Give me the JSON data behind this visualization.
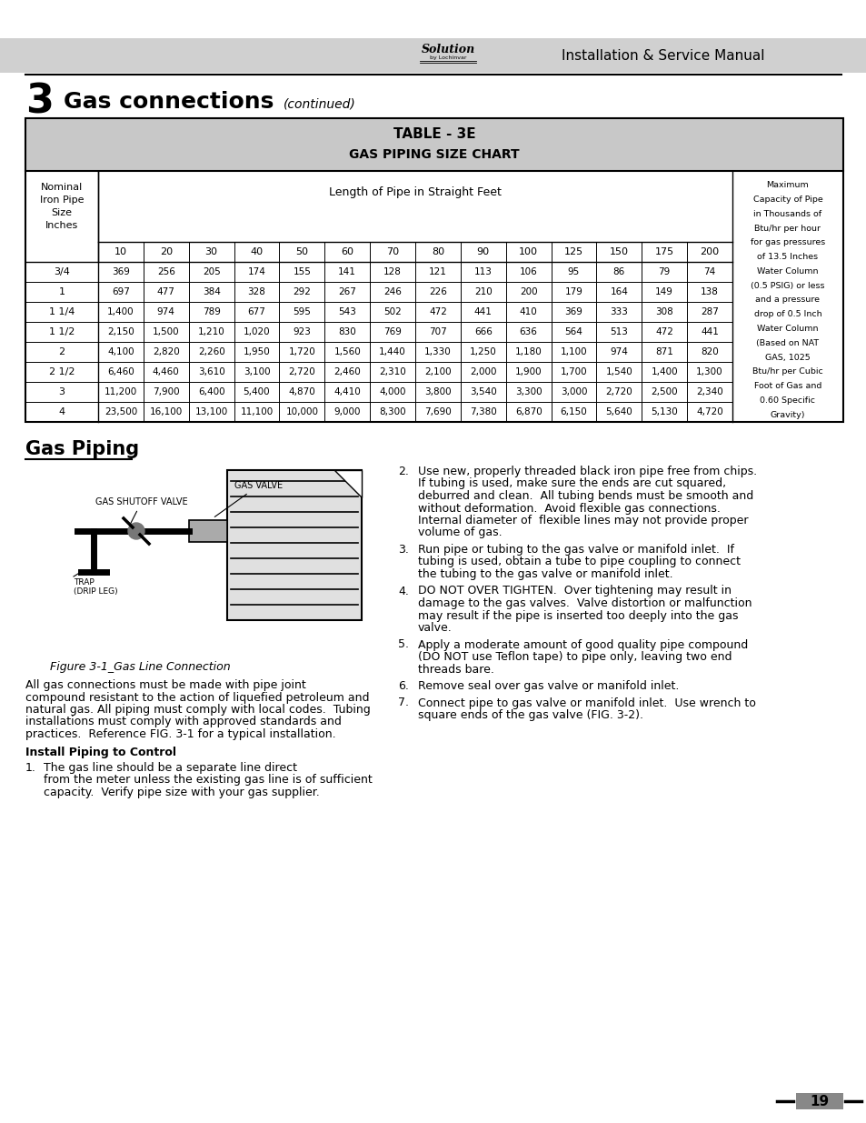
{
  "page_title": "Installation & Service Manual",
  "section_number": "3",
  "section_title": "Gas connections",
  "section_subtitle": "(continued)",
  "table_title_line1": "TABLE - 3E",
  "table_title_line2": "GAS PIPING SIZE CHART",
  "col_header_right_lines": [
    "Maximum",
    "Capacity of Pipe",
    "in Thousands of",
    "Btu/hr per hour",
    "for gas pressures",
    "of 13.5 Inches",
    "Water Column",
    "(0.5 PSIG) or less",
    "and a pressure",
    "drop of 0.5 Inch",
    "Water Column",
    "(Based on NAT",
    "GAS, 1025",
    "Btu/hr per Cubic",
    "Foot of Gas and",
    "0.60 Specific",
    "Gravity)"
  ],
  "pipe_lengths": [
    10,
    20,
    30,
    40,
    50,
    60,
    70,
    80,
    90,
    100,
    125,
    150,
    175,
    200
  ],
  "table_data": [
    [
      "3/4",
      "369",
      "256",
      "205",
      "174",
      "155",
      "141",
      "128",
      "121",
      "113",
      "106",
      "95",
      "86",
      "79",
      "74"
    ],
    [
      "1",
      "697",
      "477",
      "384",
      "328",
      "292",
      "267",
      "246",
      "226",
      "210",
      "200",
      "179",
      "164",
      "149",
      "138"
    ],
    [
      "1 1/4",
      "1,400",
      "974",
      "789",
      "677",
      "595",
      "543",
      "502",
      "472",
      "441",
      "410",
      "369",
      "333",
      "308",
      "287"
    ],
    [
      "1 1/2",
      "2,150",
      "1,500",
      "1,210",
      "1,020",
      "923",
      "830",
      "769",
      "707",
      "666",
      "636",
      "564",
      "513",
      "472",
      "441"
    ],
    [
      "2",
      "4,100",
      "2,820",
      "2,260",
      "1,950",
      "1,720",
      "1,560",
      "1,440",
      "1,330",
      "1,250",
      "1,180",
      "1,100",
      "974",
      "871",
      "820"
    ],
    [
      "2 1/2",
      "6,460",
      "4,460",
      "3,610",
      "3,100",
      "2,720",
      "2,460",
      "2,310",
      "2,100",
      "2,000",
      "1,900",
      "1,700",
      "1,540",
      "1,400",
      "1,300"
    ],
    [
      "3",
      "11,200",
      "7,900",
      "6,400",
      "5,400",
      "4,870",
      "4,410",
      "4,000",
      "3,800",
      "3,540",
      "3,300",
      "3,000",
      "2,720",
      "2,500",
      "2,340"
    ],
    [
      "4",
      "23,500",
      "16,100",
      "13,100",
      "11,100",
      "10,000",
      "9,000",
      "8,300",
      "7,690",
      "7,380",
      "6,870",
      "6,150",
      "5,640",
      "5,130",
      "4,720"
    ]
  ],
  "gas_piping_title": "Gas Piping",
  "figure_caption": "Figure 3-1_Gas Line Connection",
  "body_text_lines": [
    "All gas connections must be made with pipe joint",
    "compound resistant to the action of liquefied petroleum and",
    "natural gas. All piping must comply with local codes.  Tubing",
    "installations must comply with approved standards and",
    "practices.  Reference FIG. 3-1 for a typical installation."
  ],
  "install_piping_title": "Install Piping to Control",
  "item1_lines": [
    "The gas line should be a separate line direct",
    "from the meter unless the existing gas line is of sufficient",
    "capacity.  Verify pipe size with your gas supplier."
  ],
  "item2_lines": [
    "Use new, properly threaded black iron pipe free from chips.",
    "If tubing is used, make sure the ends are cut squared,",
    "deburred and clean.  All tubing bends must be smooth and",
    "without deformation.  Avoid flexible gas connections.",
    "Internal diameter of  flexible lines may not provide proper",
    "volume of gas."
  ],
  "item3_lines": [
    "Run pipe or tubing to the gas valve or manifold inlet.  If",
    "tubing is used, obtain a tube to pipe coupling to connect",
    "the tubing to the gas valve or manifold inlet."
  ],
  "item4_lines": [
    "DO NOT OVER TIGHTEN.  Over tightening may result in",
    "damage to the gas valves.  Valve distortion or malfunction",
    "may result if the pipe is inserted too deeply into the gas",
    "valve."
  ],
  "item5_lines": [
    "Apply a moderate amount of good quality pipe compound",
    "(DO NOT use Teflon tape) to pipe only, leaving two end",
    "threads bare."
  ],
  "item6_lines": [
    "Remove seal over gas valve or manifold inlet."
  ],
  "item7_lines": [
    "Connect pipe to gas valve or manifold inlet.  Use wrench to",
    "square ends of the gas valve (FIG. 3-2)."
  ],
  "page_number": "19",
  "header_bg": "#d0d0d0",
  "table_header_bg": "#c8c8c8",
  "white": "#ffffff",
  "black": "#000000"
}
